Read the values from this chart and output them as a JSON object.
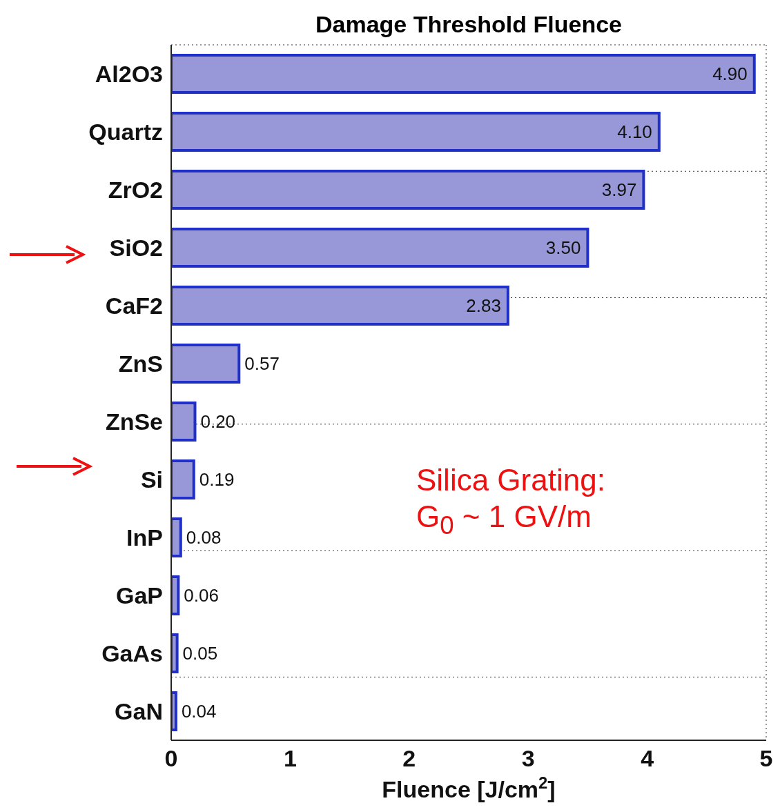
{
  "chart_data": {
    "type": "bar",
    "orientation": "horizontal",
    "title": "Damage Threshold Fluence",
    "xlabel": "Fluence [J/cm$^{2}$]",
    "categories": [
      "Al2O3",
      "Quartz",
      "ZrO2",
      "SiO2",
      "CaF2",
      "ZnS",
      "ZnSe",
      "Si",
      "InP",
      "GaP",
      "GaAs",
      "GaN"
    ],
    "values": [
      4.9,
      4.1,
      3.97,
      3.5,
      2.83,
      0.57,
      0.2,
      0.19,
      0.08,
      0.06,
      0.05,
      0.04
    ],
    "color": "#9898d8",
    "xlim": [
      0,
      5
    ],
    "xticks": [
      0,
      1,
      2,
      3,
      4,
      5
    ],
    "grid": true,
    "value_labels": [
      "4.90",
      "4.10",
      "3.97",
      "3.50",
      "2.83",
      "0.57",
      "0.20",
      "0.19",
      "0.08",
      "0.06",
      "0.05",
      "0.04"
    ],
    "annotations": [
      "Silica Grating:\nG$_{0}$ ~ 1 GV/m"
    ]
  }
}
